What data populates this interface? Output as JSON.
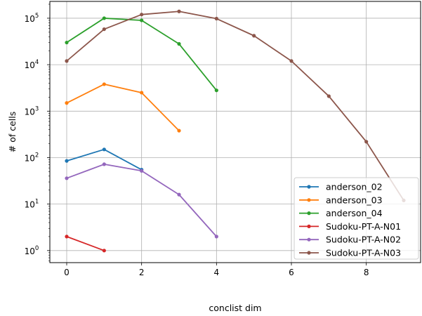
{
  "chart_data": {
    "type": "line",
    "xlabel": "conclist dim",
    "ylabel": "# of cells",
    "y_scale": "log",
    "xlim": [
      -0.45,
      9.45
    ],
    "ylim": [
      0.55,
      230000
    ],
    "x_ticks": [
      {
        "value": 0,
        "label": "0"
      },
      {
        "value": 2,
        "label": "2"
      },
      {
        "value": 4,
        "label": "4"
      },
      {
        "value": 6,
        "label": "6"
      },
      {
        "value": 8,
        "label": "8"
      }
    ],
    "y_ticks": [
      {
        "value": 1,
        "base": "10",
        "exp": "0"
      },
      {
        "value": 10,
        "base": "10",
        "exp": "1"
      },
      {
        "value": 100,
        "base": "10",
        "exp": "2"
      },
      {
        "value": 1000,
        "base": "10",
        "exp": "3"
      },
      {
        "value": 10000,
        "base": "10",
        "exp": "4"
      },
      {
        "value": 100000,
        "base": "10",
        "exp": "5"
      }
    ],
    "grid": true,
    "legend_position": "bottom-right",
    "series": [
      {
        "name": "anderson_02",
        "color": "#1f77b4",
        "x": [
          0,
          1,
          2
        ],
        "y": [
          85,
          150,
          55
        ]
      },
      {
        "name": "anderson_03",
        "color": "#ff7f0e",
        "x": [
          0,
          1,
          2,
          3
        ],
        "y": [
          1500,
          3800,
          2500,
          380
        ]
      },
      {
        "name": "anderson_04",
        "color": "#2ca02c",
        "x": [
          0,
          1,
          2,
          3,
          4
        ],
        "y": [
          30000,
          100000,
          90000,
          28000,
          2800
        ]
      },
      {
        "name": "Sudoku-PT-A-N01",
        "color": "#d62728",
        "x": [
          0,
          1
        ],
        "y": [
          2,
          1
        ]
      },
      {
        "name": "Sudoku-PT-A-N02",
        "color": "#9467bd",
        "x": [
          0,
          1,
          2,
          3,
          4
        ],
        "y": [
          36,
          72,
          52,
          16,
          2
        ]
      },
      {
        "name": "Sudoku-PT-A-N03",
        "color": "#8c564b",
        "x": [
          0,
          1,
          2,
          3,
          4,
          5,
          6,
          7,
          8,
          9
        ],
        "y": [
          12000,
          58000,
          120000,
          140000,
          98000,
          42000,
          12000,
          2100,
          220,
          12
        ]
      }
    ]
  }
}
